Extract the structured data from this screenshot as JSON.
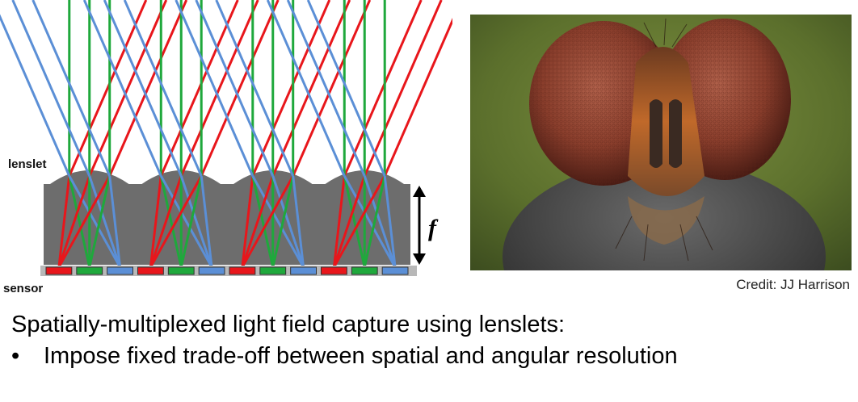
{
  "diagram": {
    "lenslet_label": "lenslet",
    "sensor_label": "sensor",
    "focal_label": "f",
    "colors": {
      "red": "#e8161b",
      "green": "#1fa83c",
      "blue": "#5b8fd6",
      "body": "#6d6d6d",
      "sensor": "#b8b8b8"
    },
    "lenslet_count": 4
  },
  "photo": {
    "subject": "fly head close-up with compound eyes"
  },
  "credit": "Credit: JJ Harrison",
  "caption": "Spatially-multiplexed light field capture using lenslets:",
  "bullets": [
    "Impose fixed trade-off between spatial and angular resolution"
  ]
}
